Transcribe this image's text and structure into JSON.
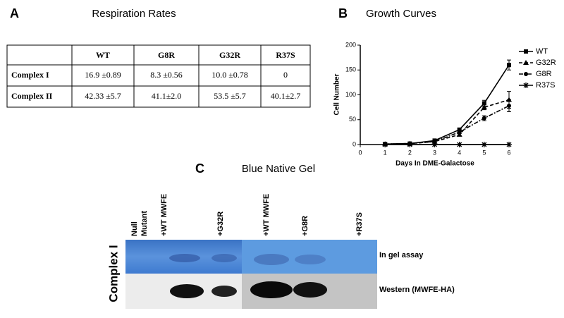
{
  "panel_a": {
    "letter": "A",
    "title": "Respiration Rates",
    "table": {
      "headers": [
        "WT",
        "G8R",
        "G32R",
        "R37S"
      ],
      "rows": [
        [
          "Complex I",
          "16.9 ±0.89",
          "8.3 ±0.56",
          "10.0 ±0.78",
          "0"
        ],
        [
          "Complex II",
          "42.33 ±5.7",
          "41.1±2.0",
          "53.5 ±5.7",
          "40.1±2.7"
        ]
      ]
    }
  },
  "chart_data": {
    "type": "line",
    "letter": "B",
    "title": "Growth Curves",
    "x_label": "Days In DME-Galactose",
    "y_label": "Cell Number",
    "x": [
      1,
      2,
      3,
      4,
      5,
      6
    ],
    "xlim": [
      0,
      6
    ],
    "xticks": [
      0,
      1,
      2,
      3,
      4,
      5,
      6
    ],
    "ylim": [
      0,
      200
    ],
    "yticks": [
      0,
      50,
      100,
      150,
      200
    ],
    "legend": "right",
    "series": [
      {
        "name": "WT",
        "color": "#000000",
        "style": "solid",
        "marker": "square",
        "values": [
          1,
          2,
          8,
          30,
          83,
          160
        ],
        "errors": [
          0,
          0,
          1,
          3,
          6,
          10
        ]
      },
      {
        "name": "G32R",
        "color": "#000000",
        "style": "dashed",
        "marker": "triangle",
        "values": [
          1,
          2,
          6,
          20,
          75,
          90
        ],
        "errors": [
          0,
          0,
          1,
          3,
          5,
          17
        ]
      },
      {
        "name": "G8R",
        "color": "#000000",
        "style": "dashdot",
        "marker": "circle",
        "values": [
          1,
          2,
          6,
          25,
          53,
          78
        ],
        "errors": [
          0,
          0,
          1,
          3,
          5,
          12
        ]
      },
      {
        "name": "R37S",
        "color": "#000000",
        "style": "solid",
        "marker": "asterisk",
        "values": [
          0,
          0,
          0,
          0,
          0,
          0
        ],
        "errors": [
          0,
          0,
          0,
          0,
          0,
          0
        ]
      }
    ]
  },
  "panel_c": {
    "letter": "C",
    "title": "Blue Native Gel",
    "side_label": "Complex I",
    "lanes": [
      [
        "Null",
        "Mutant"
      ],
      [
        "+WT MWFE"
      ],
      [
        "+G32R"
      ],
      [
        "+WT MWFE"
      ],
      [
        "+G8R"
      ],
      [
        "+R37S"
      ]
    ],
    "row_labels": [
      "In gel assay",
      "Western (MWFE-HA)"
    ]
  }
}
